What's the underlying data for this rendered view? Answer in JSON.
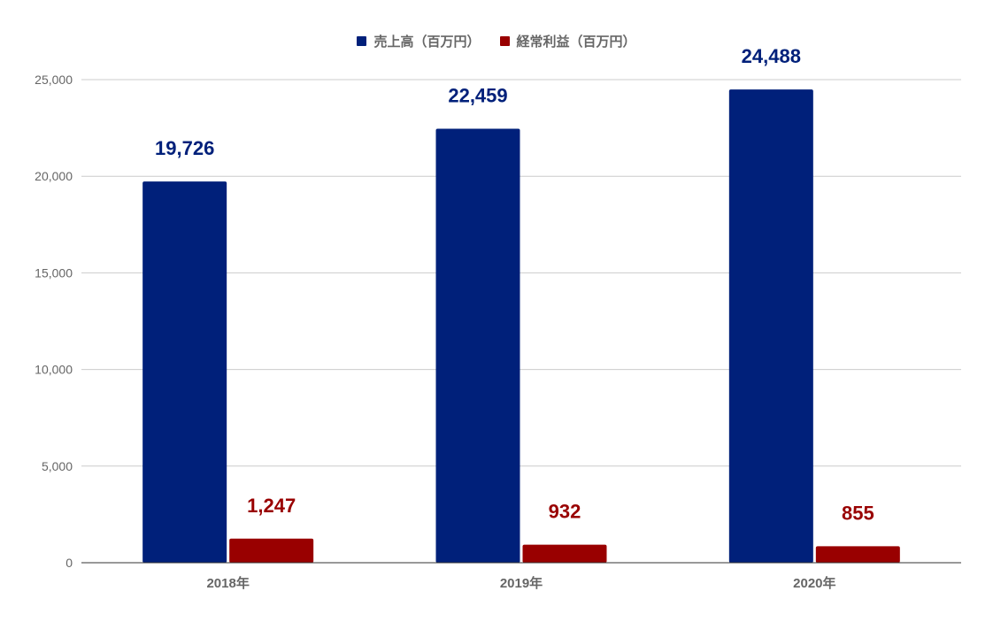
{
  "chart_data": {
    "type": "bar",
    "title": "",
    "xlabel": "",
    "ylabel": "",
    "categories": [
      "2018年",
      "2019年",
      "2020年"
    ],
    "series": [
      {
        "name": "売上高（百万円）",
        "color": "#00207a",
        "values": [
          19726,
          22459,
          24488
        ],
        "labels": [
          "19,726",
          "22,459",
          "24,488"
        ]
      },
      {
        "name": "経常利益（百万円）",
        "color": "#990000",
        "values": [
          1247,
          932,
          855
        ],
        "labels": [
          "1,247",
          "932",
          "855"
        ]
      }
    ],
    "ylim": [
      0,
      25000
    ],
    "yticks": [
      0,
      5000,
      10000,
      15000,
      20000,
      25000
    ],
    "ytick_labels": [
      "0",
      "5,000",
      "10,000",
      "15,000",
      "20,000",
      "25,000"
    ],
    "grid": true,
    "legend_position": "top-center"
  }
}
